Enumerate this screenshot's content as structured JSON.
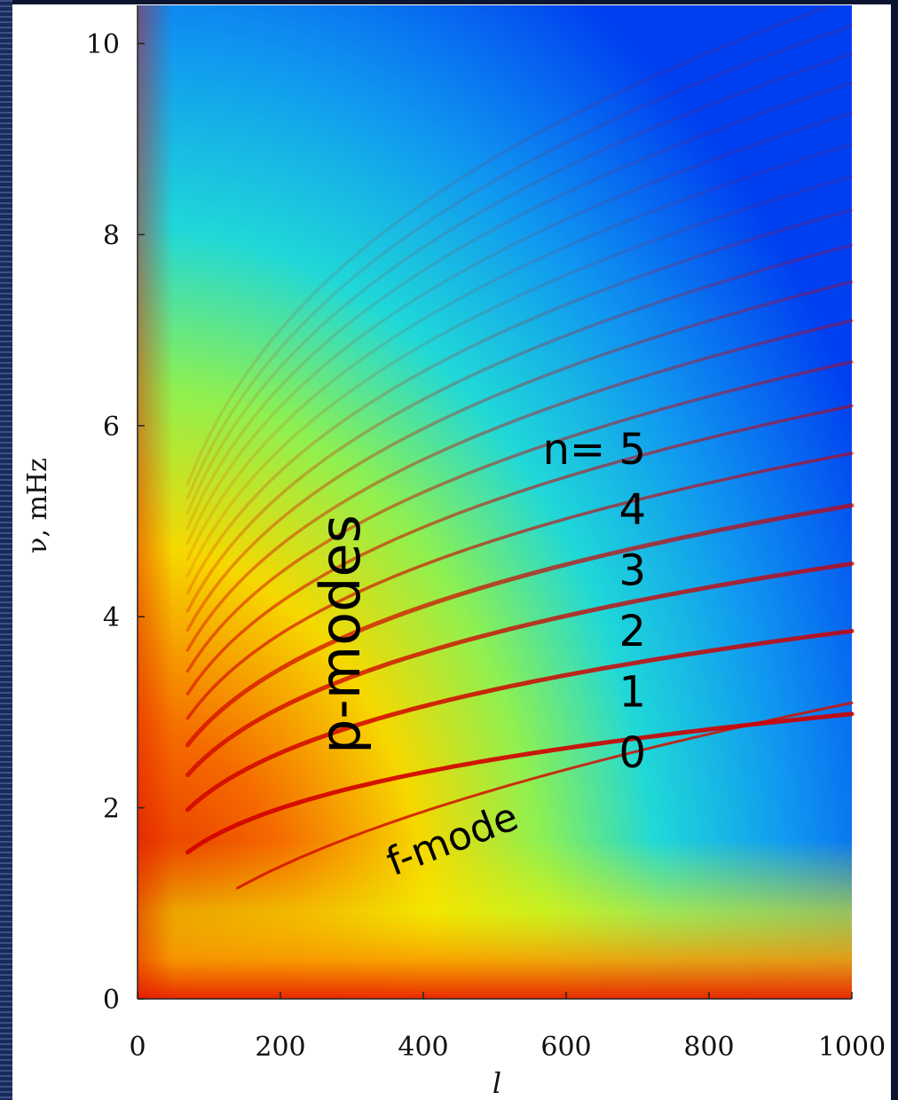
{
  "chart_data": {
    "type": "heatmap",
    "x_label": "l",
    "y_label": "ν, mHz",
    "xlim": [
      0,
      1000
    ],
    "ylim": [
      0,
      10.4
    ],
    "xticks": [
      0,
      200,
      400,
      600,
      800,
      1000
    ],
    "yticks": [
      0,
      2,
      4,
      6,
      8,
      10
    ],
    "annotations": {
      "p_modes": "p-modes",
      "n_label": "n= 5",
      "orders": [
        "4",
        "3",
        "2",
        "1",
        "0"
      ],
      "f_mode": "f-mode"
    }
  }
}
